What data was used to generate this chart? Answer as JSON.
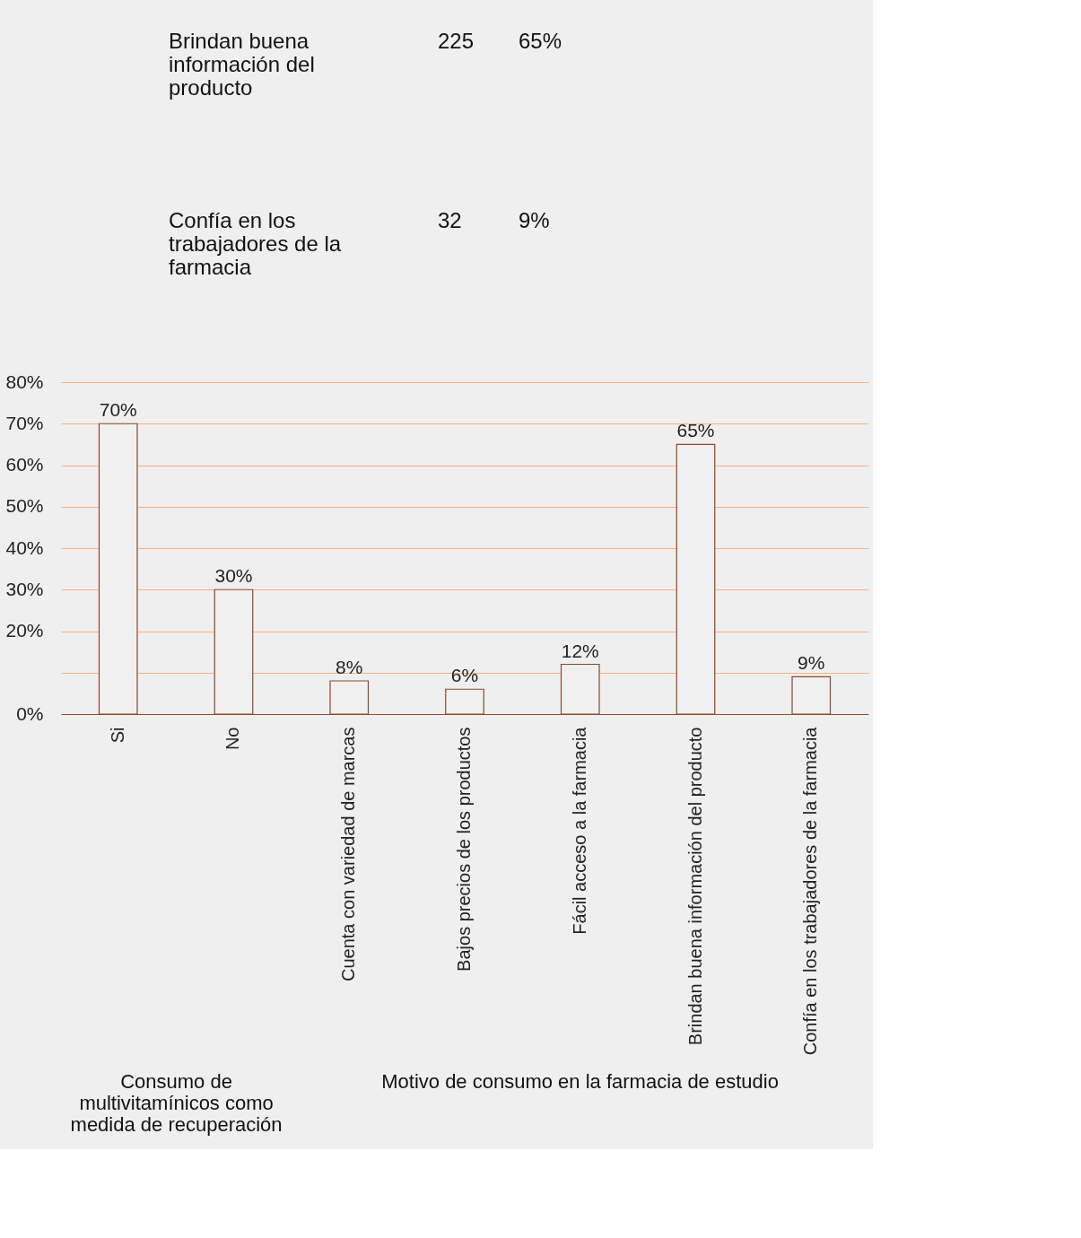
{
  "chart_data": {
    "type": "bar",
    "categories": [
      "Si",
      "No",
      "Cuenta con variedad de marcas",
      "Bajos precios de los productos",
      "Fácil acceso a la farmacia",
      "Brindan buena información del producto",
      "Confía en los trabajadores de la farmacia"
    ],
    "values": [
      70,
      30,
      8,
      6,
      12,
      65,
      9
    ],
    "value_labels": [
      "70%",
      "30%",
      "8%",
      "6%",
      "12%",
      "65%",
      "9%"
    ],
    "color": "#f0f0f0",
    "ylim": [
      0,
      80
    ],
    "yticks": [
      {
        "value": 0,
        "label": "0%"
      },
      {
        "value": 10,
        "label": null
      },
      {
        "value": 20,
        "label": "20%"
      },
      {
        "value": 30,
        "label": "30%"
      },
      {
        "value": 40,
        "label": "40%"
      },
      {
        "value": 50,
        "label": "50%"
      },
      {
        "value": 60,
        "label": "60%"
      },
      {
        "value": 70,
        "label": "70%"
      },
      {
        "value": 80,
        "label": "80%"
      }
    ],
    "grid": "y",
    "annotations": [
      "Brindan buena información del producto",
      "225",
      "65%",
      "Confía en los trabajadores de la farmacia",
      "32",
      "9%",
      "Consumo de multivitamínicos como medida de recuperación",
      "Motivo de consumo en la farmacia de estudio"
    ]
  }
}
